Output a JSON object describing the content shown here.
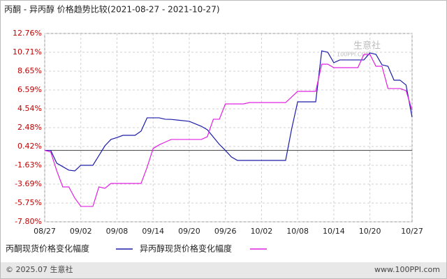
{
  "chart_data": {
    "type": "line",
    "title": "丙酮 - 异丙醇 价格趋势比较(2021-08-27 - 2021-10-27)",
    "x": [
      "08/27",
      "08/28",
      "08/29",
      "08/30",
      "08/31",
      "09/01",
      "09/02",
      "09/04",
      "09/05",
      "09/06",
      "09/07",
      "09/08",
      "09/09",
      "09/11",
      "09/12",
      "09/13",
      "09/14",
      "09/15",
      "09/16",
      "09/17",
      "09/20",
      "09/22",
      "09/23",
      "09/24",
      "09/25",
      "09/26",
      "09/27",
      "09/28",
      "09/29",
      "09/30",
      "10/06",
      "10/07",
      "10/08",
      "10/11",
      "10/12",
      "10/13",
      "10/14",
      "10/15",
      "10/18",
      "10/19",
      "10/20",
      "10/21",
      "10/22",
      "10/23",
      "10/24",
      "10/25",
      "10/26",
      "10/27"
    ],
    "series": [
      {
        "name": "丙酮现货价格变化幅度",
        "color": "#1c1ca8",
        "values": [
          0,
          0,
          -1.4,
          -1.78,
          -2.16,
          -2.24,
          -1.63,
          -1.63,
          -0.57,
          0.5,
          1.19,
          1.4,
          1.64,
          1.64,
          2.1,
          3.55,
          3.55,
          3.55,
          3.4,
          3.38,
          3.17,
          2.63,
          2.25,
          1.45,
          0.65,
          0.0,
          -0.72,
          -1.1,
          -1.1,
          -1.1,
          -1.1,
          2.33,
          5.3,
          5.3,
          10.86,
          10.71,
          9.57,
          9.87,
          9.87,
          9.87,
          10.63,
          10.48,
          9.34,
          9.18,
          7.66,
          7.66,
          7.13,
          3.62
        ]
      },
      {
        "name": "异丙醇现货价格变化幅度",
        "color": "#e020e0",
        "values": [
          0,
          -0.18,
          -2.24,
          -3.99,
          -3.99,
          -5.21,
          -6.12,
          -6.12,
          -3.99,
          -4.14,
          -3.61,
          -3.61,
          -3.61,
          -3.61,
          -3.61,
          -1.86,
          0.2,
          0.6,
          0.9,
          1.19,
          1.19,
          1.19,
          1.49,
          3.4,
          3.4,
          5.07,
          5.07,
          5.07,
          5.07,
          5.22,
          5.22,
          5.83,
          6.44,
          6.44,
          9.41,
          9.41,
          9.03,
          9.03,
          9.03,
          10.48,
          10.48,
          9.18,
          9.18,
          6.75,
          6.75,
          6.75,
          6.52,
          4.39
        ]
      }
    ],
    "xticks": [
      "08/27",
      "09/02",
      "09/08",
      "09/14",
      "09/20",
      "09/26",
      "10/02",
      "10/08",
      "10/14",
      "10/20",
      "10/27"
    ],
    "ylim": [
      -7.8,
      12.76
    ],
    "yticks": [
      {
        "value": 12.76,
        "label": "12.76%"
      },
      {
        "value": 10.71,
        "label": "10.71%"
      },
      {
        "value": 8.65,
        "label": "8.65%"
      },
      {
        "value": 6.59,
        "label": "6.59%"
      },
      {
        "value": 4.54,
        "label": "4.54%"
      },
      {
        "value": 2.48,
        "label": "2.48%"
      },
      {
        "value": 0.42,
        "label": "0.42%"
      },
      {
        "value": -1.63,
        "label": "-1.63%"
      },
      {
        "value": -3.69,
        "label": "-3.69%"
      },
      {
        "value": -5.75,
        "label": "-5.75%"
      },
      {
        "value": -7.8,
        "label": "-7.80%"
      }
    ],
    "grid": true,
    "watermark": "生意社",
    "watermark_url": "100PPI.COM",
    "copyright": "© 2025.07 生意社",
    "website": "www.100PPI.com"
  }
}
